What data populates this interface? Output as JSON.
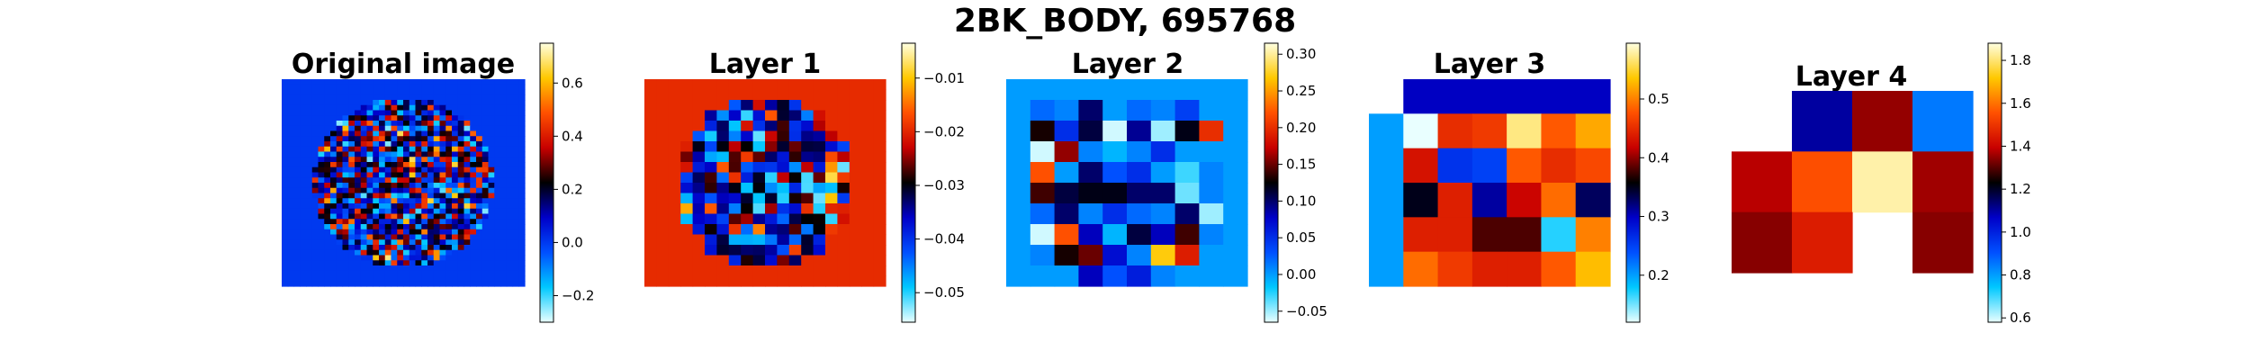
{
  "figure": {
    "title": "2BK_BODY, 695768"
  },
  "colormap": {
    "name": "flag-like diverging (cyan-blue-black-red-yellow)",
    "stops": [
      "#e9ffff",
      "#00c8ff",
      "#0050ff",
      "#0000c8",
      "#000000",
      "#c80000",
      "#ff5000",
      "#ffc800",
      "#ffffe0"
    ]
  },
  "chart_data": [
    {
      "type": "heatmap",
      "title": "Original image",
      "rows": 40,
      "cols": 40,
      "description_of_values": "circular brain slice of mixed random activations on uniform background",
      "background_value": 0.0,
      "vmin": -0.3,
      "vmax": 0.75,
      "colorbar_ticks": [
        -0.2,
        0.0,
        0.2,
        0.4,
        0.6
      ],
      "colorbar_tick_labels": [
        "−0.2",
        "0.0",
        "0.2",
        "0.4",
        "0.6"
      ],
      "seed": 11
    },
    {
      "type": "heatmap",
      "title": "Layer 1",
      "rows": 20,
      "cols": 20,
      "background_value": -0.0195,
      "vmin": -0.0555,
      "vmax": -0.0035,
      "colorbar_ticks": [
        -0.05,
        -0.04,
        -0.03,
        -0.02,
        -0.01
      ],
      "colorbar_tick_labels": [
        "−0.05",
        "−0.04",
        "−0.03",
        "−0.02",
        "−0.01"
      ],
      "seed": 23
    },
    {
      "type": "heatmap",
      "title": "Layer 2",
      "rows": 10,
      "cols": 10,
      "background_value": 0.0,
      "vmin": -0.065,
      "vmax": 0.315,
      "colorbar_ticks": [
        -0.05,
        0.0,
        0.05,
        0.1,
        0.15,
        0.2,
        0.25,
        0.3
      ],
      "colorbar_tick_labels": [
        "−0.05",
        "0.00",
        "0.05",
        "0.10",
        "0.15",
        "0.20",
        "0.25",
        "0.30"
      ],
      "values": [
        [
          0.0,
          0.0,
          0.0,
          0.0,
          0.0,
          0.0,
          0.0,
          0.0,
          0.0,
          0.0
        ],
        [
          0.0,
          0.02,
          0.01,
          0.1,
          0.0,
          0.02,
          0.01,
          0.04,
          0.0,
          0.0
        ],
        [
          0.0,
          0.13,
          0.05,
          0.11,
          -0.06,
          0.09,
          -0.05,
          0.12,
          0.2,
          0.0
        ],
        [
          0.0,
          -0.06,
          0.16,
          0.01,
          -0.01,
          0.01,
          0.05,
          0.0,
          0.0,
          0.0
        ],
        [
          0.0,
          0.22,
          0.0,
          0.1,
          0.03,
          0.05,
          0.0,
          -0.03,
          0.01,
          0.0
        ],
        [
          0.0,
          0.14,
          0.11,
          0.12,
          0.12,
          0.1,
          0.1,
          -0.04,
          0.01,
          0.0
        ],
        [
          0.0,
          0.02,
          0.1,
          0.01,
          0.05,
          0.02,
          0.01,
          0.1,
          -0.05,
          0.0
        ],
        [
          0.0,
          -0.06,
          0.22,
          0.08,
          -0.01,
          0.11,
          0.08,
          0.14,
          0.01,
          0.0
        ],
        [
          0.0,
          0.01,
          0.13,
          0.15,
          0.07,
          0.01,
          0.27,
          0.19,
          0.0,
          0.0
        ],
        [
          0.0,
          0.0,
          0.0,
          0.08,
          0.03,
          0.06,
          0.01,
          0.0,
          0.0,
          0.0
        ]
      ]
    },
    {
      "type": "heatmap",
      "title": "Layer 3",
      "rows": 6,
      "cols": 7,
      "vmin": 0.12,
      "vmax": 0.595,
      "colorbar_ticks": [
        0.2,
        0.3,
        0.4,
        0.5
      ],
      "colorbar_tick_labels": [
        "0.2",
        "0.3",
        "0.4",
        "0.5"
      ],
      "values": [
        [
          null,
          0.3,
          0.3,
          0.3,
          0.3,
          0.3,
          0.3
        ],
        [
          0.2,
          0.12,
          0.45,
          0.46,
          0.57,
          0.48,
          0.52
        ],
        [
          0.2,
          0.43,
          0.26,
          0.25,
          0.48,
          0.45,
          0.47
        ],
        [
          0.2,
          0.35,
          0.44,
          0.31,
          0.42,
          0.49,
          0.33
        ],
        [
          0.2,
          0.44,
          0.44,
          0.38,
          0.38,
          0.17,
          0.5
        ],
        [
          0.2,
          0.49,
          0.46,
          0.44,
          0.44,
          0.48,
          0.53
        ]
      ]
    },
    {
      "type": "heatmap",
      "title": "Layer 4",
      "rows": 3,
      "cols": 4,
      "vmin": 0.58,
      "vmax": 1.88,
      "colorbar_ticks": [
        0.6,
        0.8,
        1.0,
        1.2,
        1.4,
        1.6,
        1.8
      ],
      "colorbar_tick_labels": [
        "0.6",
        "0.8",
        "1.0",
        "1.2",
        "1.4",
        "1.6",
        "1.8"
      ],
      "values": [
        [
          null,
          1.1,
          1.35,
          0.85
        ],
        [
          1.38,
          1.55,
          1.84,
          1.36
        ],
        [
          1.34,
          1.45,
          null,
          1.34
        ]
      ]
    }
  ]
}
